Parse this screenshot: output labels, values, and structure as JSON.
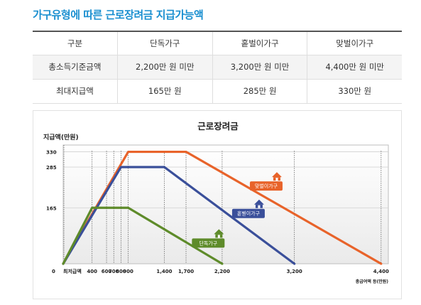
{
  "page": {
    "title": "가구유형에 따른 근로장려금 지급가능액"
  },
  "table": {
    "headers": [
      "구분",
      "단독가구",
      "홑벌이가구",
      "맞벌이가구"
    ],
    "rows": [
      {
        "label": "총소득기준금액",
        "values": [
          "2,200만 원 미만",
          "3,200만 원 미만",
          "4,400만 원 미만"
        ]
      },
      {
        "label": "최대지급액",
        "values": [
          "165만 원",
          "285만 원",
          "330만 원"
        ]
      }
    ]
  },
  "chart_data": {
    "type": "line",
    "title": "근로장려금",
    "ylabel": "지급액(만원)",
    "xlabel": "총급여액 등(만원)",
    "x_origin_label": "최저급액",
    "xlim": [
      0,
      4500
    ],
    "ylim": [
      0,
      350
    ],
    "xticks": [
      400,
      600,
      700,
      800,
      900,
      1400,
      1700,
      2200,
      3200,
      4400
    ],
    "yticks": [
      165,
      285,
      330
    ],
    "y_zero_label": "0",
    "grid": true,
    "series": [
      {
        "name": "맞벌이가구",
        "color": "#e8632a",
        "x": [
          0,
          900,
          1700,
          4400
        ],
        "y": [
          0,
          330,
          330,
          0
        ]
      },
      {
        "name": "홑벌이가구",
        "color": "#3a4f9a",
        "x": [
          0,
          800,
          1400,
          3200
        ],
        "y": [
          0,
          285,
          285,
          0
        ]
      },
      {
        "name": "단독가구",
        "color": "#5e8b2a",
        "x": [
          0,
          400,
          900,
          2200
        ],
        "y": [
          0,
          165,
          165,
          0
        ]
      }
    ]
  }
}
